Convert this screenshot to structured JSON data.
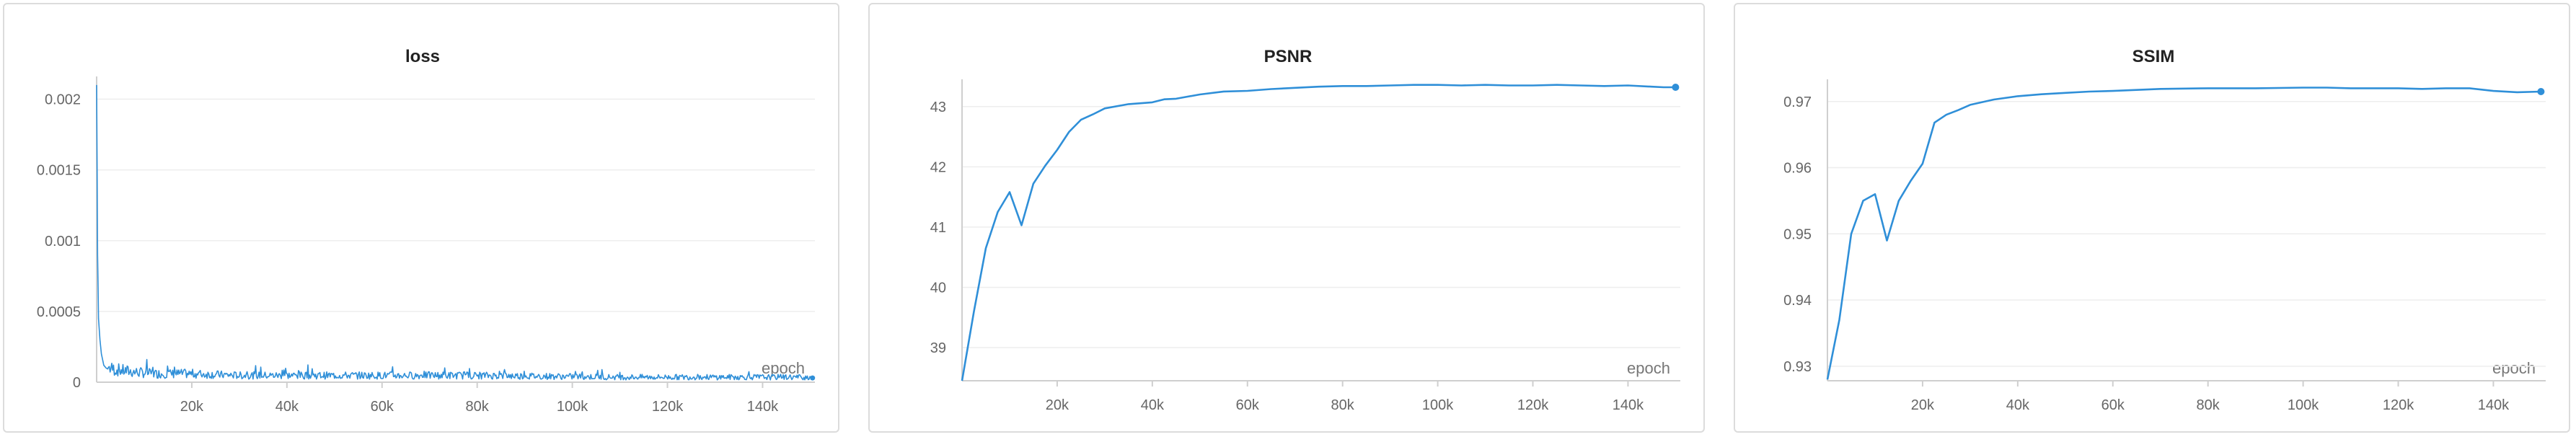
{
  "colors": {
    "series": "#2f8fd8"
  },
  "chart_data": [
    {
      "type": "line",
      "title": "loss",
      "xlabel": "epoch",
      "ylabel": "",
      "xlim": [
        0,
        151000
      ],
      "ylim": [
        0,
        0.00213
      ],
      "xticks": [
        20000,
        40000,
        60000,
        80000,
        100000,
        120000,
        140000
      ],
      "xtick_labels": [
        "20k",
        "40k",
        "60k",
        "80k",
        "100k",
        "120k",
        "140k"
      ],
      "yticks": [
        0,
        0.0005,
        0.001,
        0.0015,
        0.002
      ],
      "ytick_labels": [
        "0",
        "0.0005",
        "0.001",
        "0.0015",
        "0.002"
      ],
      "series": [
        {
          "x": [
            0,
            200,
            400,
            700,
            1000,
            1500,
            2000,
            3000,
            5000,
            8000,
            12000,
            20000,
            30000,
            50000,
            80000,
            110000,
            140000,
            150500
          ],
          "y": [
            0.0021,
            0.0009,
            0.00045,
            0.0003,
            0.0002,
            0.00012,
            0.0001,
            8e-05,
            7e-05,
            6e-05,
            5e-05,
            5e-05,
            4e-05,
            4e-05,
            4e-05,
            3e-05,
            3e-05,
            3e-05
          ]
        }
      ]
    },
    {
      "type": "line",
      "title": "PSNR",
      "xlabel": "epoch",
      "ylabel": "",
      "xlim": [
        0,
        151000
      ],
      "ylim": [
        38.45,
        43.38
      ],
      "xticks": [
        20000,
        40000,
        60000,
        80000,
        100000,
        120000,
        140000
      ],
      "xtick_labels": [
        "20k",
        "40k",
        "60k",
        "80k",
        "100k",
        "120k",
        "140k"
      ],
      "yticks": [
        39,
        40,
        41,
        42,
        43
      ],
      "ytick_labels": [
        "39",
        "40",
        "41",
        "42",
        "43"
      ],
      "series": [
        {
          "x": [
            0,
            2500,
            5000,
            7500,
            10000,
            12500,
            15000,
            17500,
            20000,
            22500,
            25000,
            27500,
            30000,
            35000,
            40000,
            42500,
            45000,
            50000,
            55000,
            60000,
            65000,
            70000,
            75000,
            80000,
            85000,
            90000,
            95000,
            100000,
            105000,
            110000,
            115000,
            120000,
            125000,
            130000,
            135000,
            140000,
            145000,
            147500,
            150000
          ],
          "y": [
            38.45,
            39.6,
            40.65,
            41.25,
            41.58,
            41.03,
            41.72,
            42.02,
            42.28,
            42.58,
            42.78,
            42.87,
            42.97,
            43.04,
            43.07,
            43.12,
            43.13,
            43.2,
            43.25,
            43.26,
            43.29,
            43.31,
            43.33,
            43.34,
            43.34,
            43.35,
            43.36,
            43.36,
            43.35,
            43.36,
            43.35,
            43.35,
            43.36,
            43.35,
            43.34,
            43.35,
            43.33,
            43.32,
            43.32
          ]
        }
      ]
    },
    {
      "type": "line",
      "title": "SSIM",
      "xlabel": "epoch",
      "ylabel": "",
      "xlim": [
        0,
        151000
      ],
      "ylim": [
        0.9278,
        0.9727
      ],
      "xticks": [
        20000,
        40000,
        60000,
        80000,
        100000,
        120000,
        140000
      ],
      "xtick_labels": [
        "20k",
        "40k",
        "60k",
        "80k",
        "100k",
        "120k",
        "140k"
      ],
      "yticks": [
        0.93,
        0.94,
        0.95,
        0.96,
        0.97
      ],
      "ytick_labels": [
        "0.93",
        "0.94",
        "0.95",
        "0.96",
        "0.97"
      ],
      "series": [
        {
          "x": [
            0,
            2500,
            5000,
            7500,
            10000,
            12500,
            15000,
            17500,
            20000,
            22500,
            25000,
            27500,
            30000,
            35000,
            40000,
            45000,
            50000,
            55000,
            60000,
            70000,
            80000,
            90000,
            100000,
            105000,
            110000,
            120000,
            125000,
            130000,
            135000,
            140000,
            145000,
            150000
          ],
          "y": [
            0.928,
            0.937,
            0.95,
            0.955,
            0.956,
            0.949,
            0.955,
            0.958,
            0.9606,
            0.9668,
            0.968,
            0.9687,
            0.9695,
            0.9703,
            0.9708,
            0.9711,
            0.9713,
            0.9715,
            0.9716,
            0.9719,
            0.972,
            0.972,
            0.9721,
            0.9721,
            0.972,
            0.972,
            0.9719,
            0.972,
            0.972,
            0.9716,
            0.9714,
            0.9715
          ]
        }
      ]
    }
  ]
}
